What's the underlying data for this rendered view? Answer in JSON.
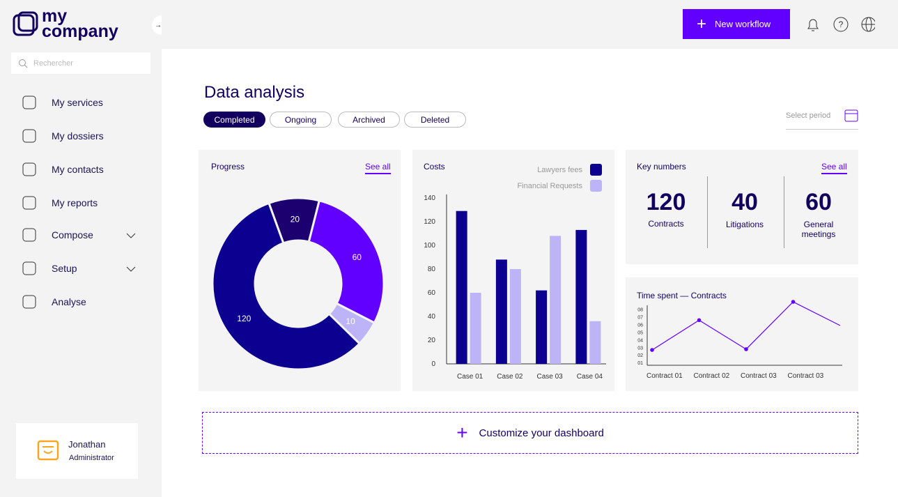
{
  "brand": {
    "line1": "my",
    "line2": "company"
  },
  "search_placeholder": "Rechercher",
  "nav": [
    {
      "label": "My services",
      "expandable": false
    },
    {
      "label": "My dossiers",
      "expandable": false
    },
    {
      "label": "My contacts",
      "expandable": false
    },
    {
      "label": "My reports",
      "expandable": false
    },
    {
      "label": "Compose",
      "expandable": true
    },
    {
      "label": "Setup",
      "expandable": true
    },
    {
      "label": "Analyse",
      "expandable": false
    }
  ],
  "user": {
    "name": "Jonathan",
    "role": "Administrator"
  },
  "header": {
    "new_workflow": "New workflow"
  },
  "title": "Data analysis",
  "tabs": [
    {
      "label": "Completed",
      "selected": true
    },
    {
      "label": "Ongoing",
      "selected": false
    },
    {
      "label": "Archived",
      "selected": false
    },
    {
      "label": "Deleted",
      "selected": false
    }
  ],
  "period": "Select period",
  "progress": {
    "title": "Progress",
    "link": "See all",
    "chart": {
      "type": "donut",
      "values": [
        20,
        60,
        10,
        120
      ],
      "colors": [
        "#1c0070",
        "#6200ff",
        "#bdb3f7",
        "#0b0090"
      ]
    }
  },
  "costs": {
    "title": "Costs",
    "chart": {
      "type": "bar",
      "categories": [
        "Case 01",
        "Case 02",
        "Case 03",
        "Case 04"
      ],
      "series": [
        {
          "name": "Lawyers fees",
          "color": "#0b0090",
          "values": [
            129,
            88,
            62,
            113
          ]
        },
        {
          "name": "Financial Requests",
          "color": "#bdb3f7",
          "values": [
            60,
            80,
            108,
            36
          ]
        }
      ],
      "ylim": [
        0,
        140
      ],
      "yticks": [
        0,
        20,
        40,
        60,
        80,
        100,
        120,
        140
      ]
    }
  },
  "key_numbers": {
    "title": "Key numbers",
    "link": "See all",
    "items": [
      {
        "value": 120,
        "label": "Contracts"
      },
      {
        "value": 40,
        "label": "Litigations"
      },
      {
        "value": 60,
        "label": "General meetings"
      }
    ]
  },
  "time_spent": {
    "title": "Time spent — Contracts",
    "chart": {
      "type": "line",
      "color": "#6200ff",
      "categories": [
        "Contract 01",
        "Contract 02",
        "Contract 03",
        "Contract 03",
        null
      ],
      "values": [
        2.7,
        6.6,
        2.8,
        9,
        5.9
      ],
      "ylim": [
        0.7,
        9
      ],
      "yticks": [
        {
          "value": 1,
          "label": "01"
        },
        {
          "value": 2,
          "label": "02"
        },
        {
          "value": 3,
          "label": "03"
        },
        {
          "value": 4,
          "label": "04"
        },
        {
          "value": 5,
          "label": "05"
        },
        {
          "value": 6,
          "label": "06"
        },
        {
          "value": 7,
          "label": "07"
        },
        {
          "value": 8,
          "label": "08"
        }
      ]
    }
  },
  "customize": "Customize your dashboard"
}
